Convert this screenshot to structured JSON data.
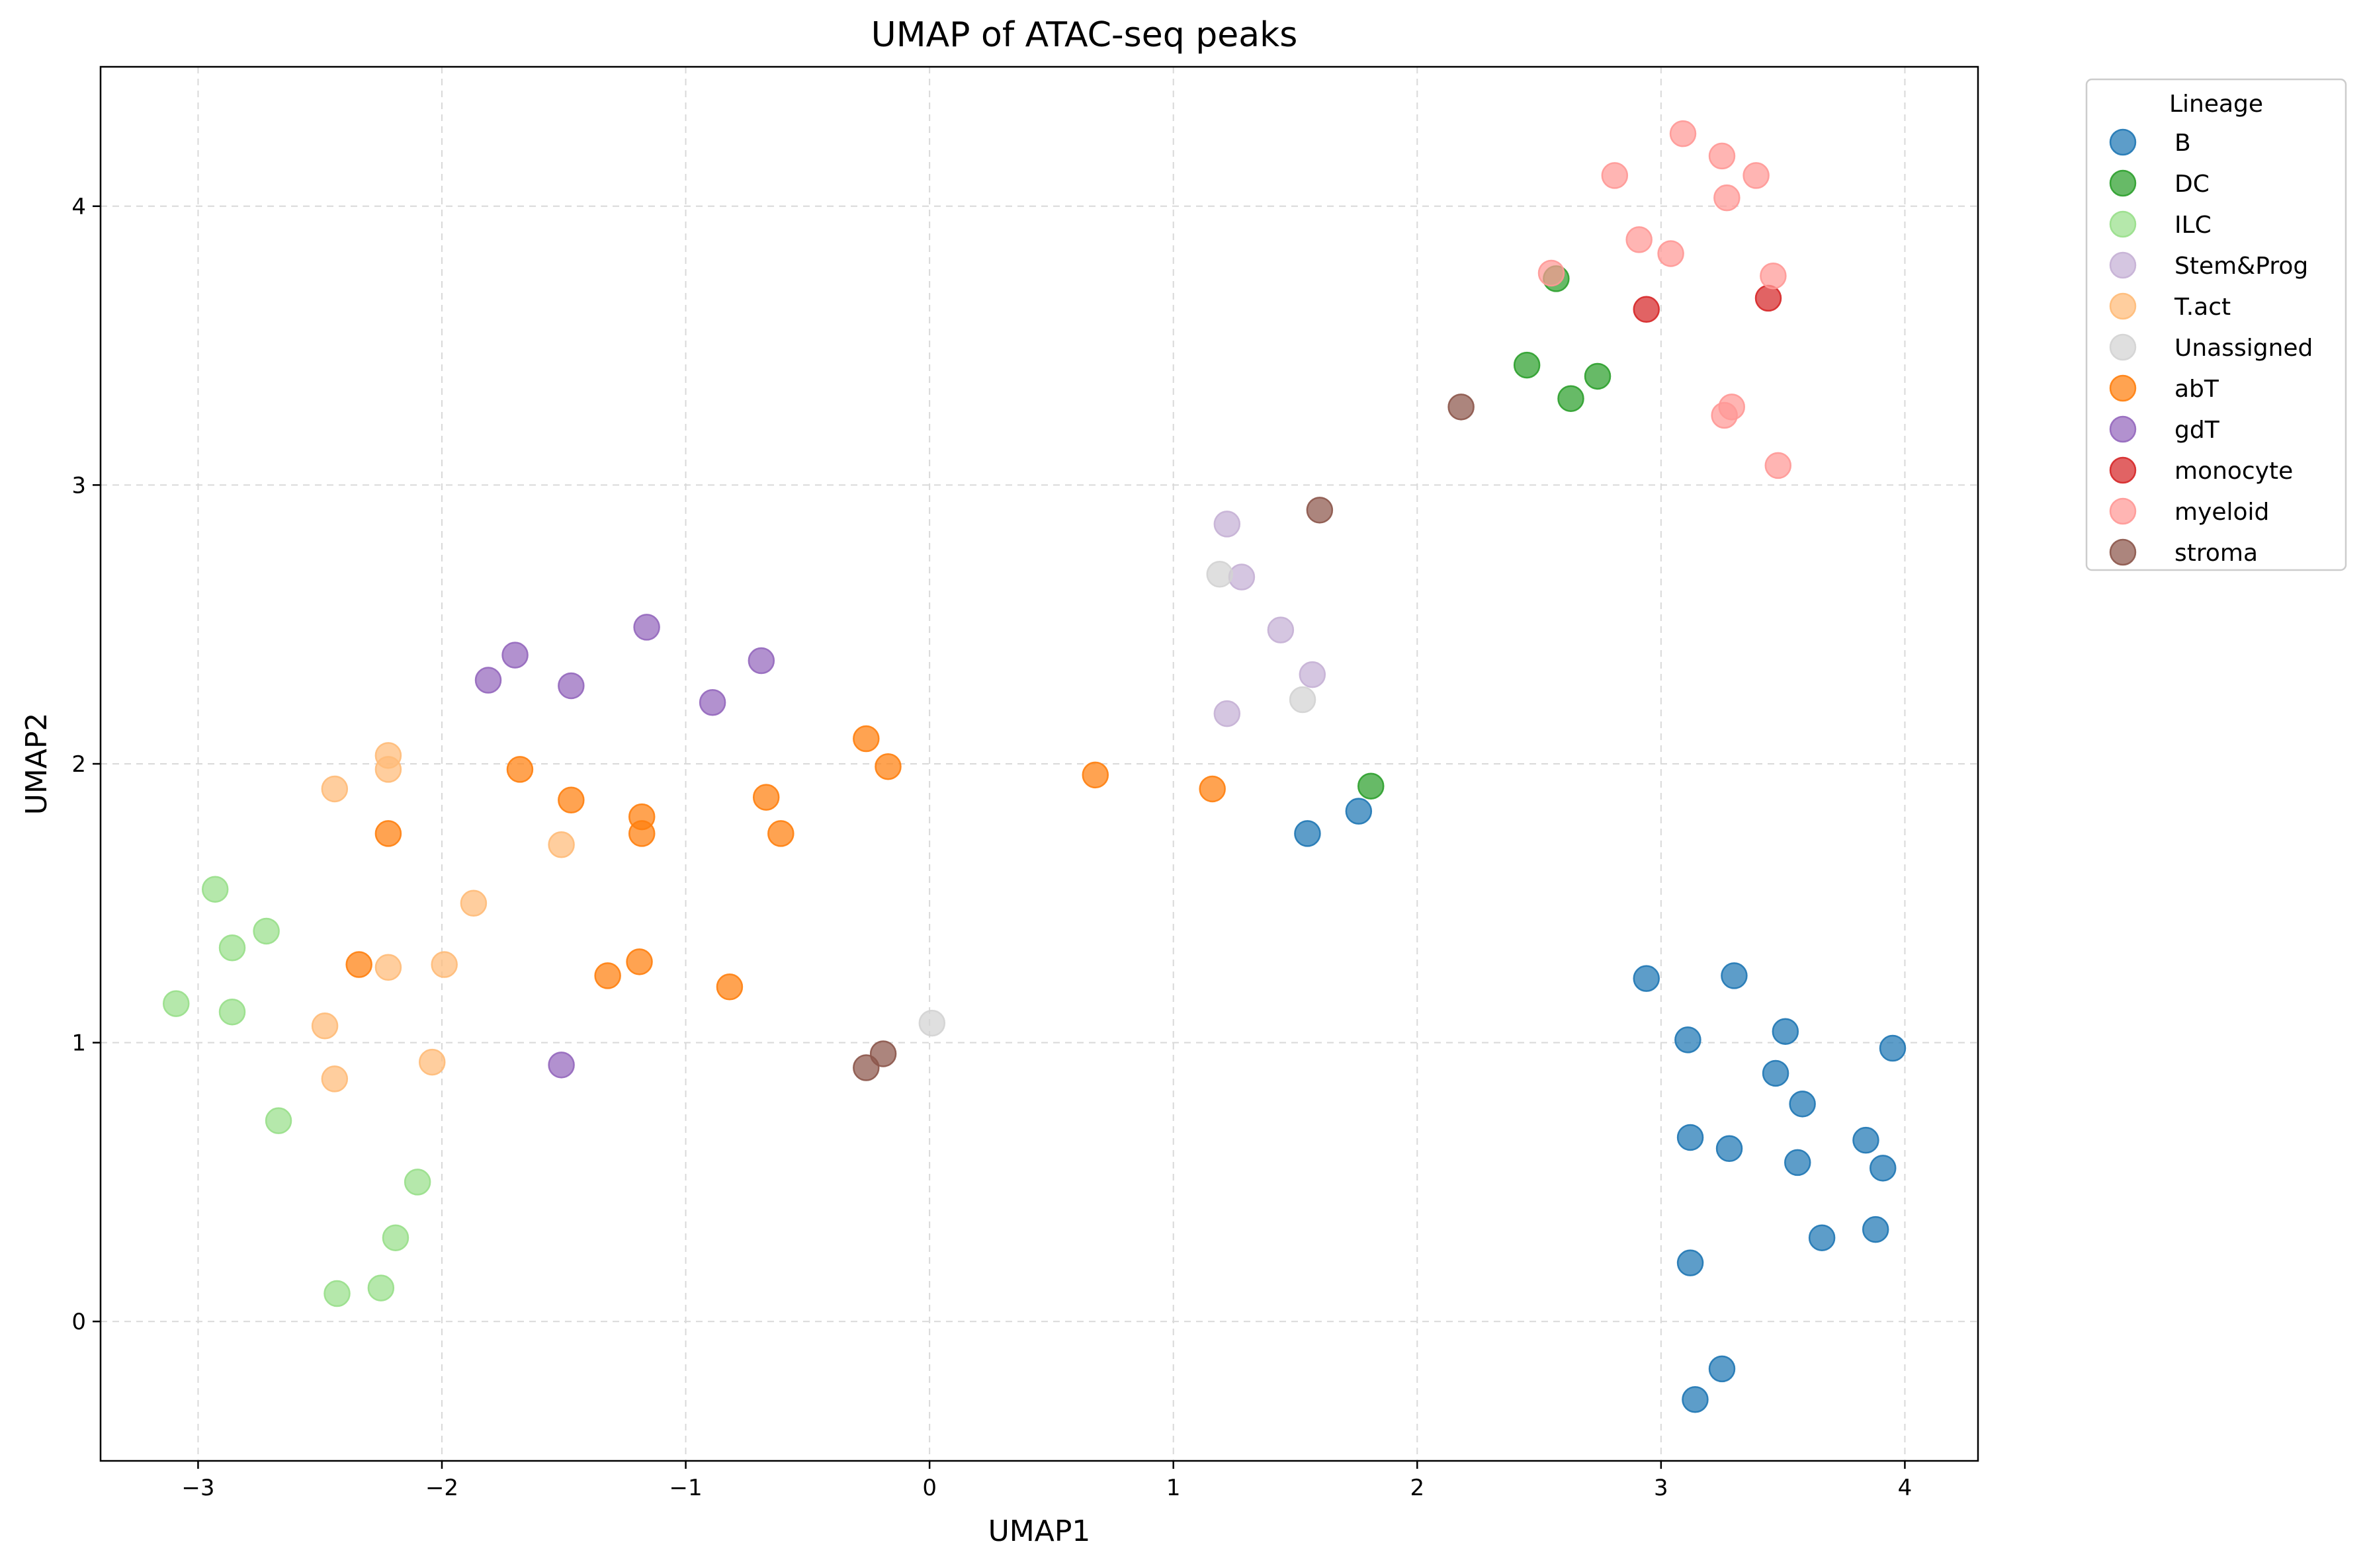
{
  "chart_data": {
    "type": "scatter",
    "title": "UMAP of ATAC-seq peaks",
    "xlabel": "UMAP1",
    "ylabel": "UMAP2",
    "xlim": [
      -3.4,
      4.3
    ],
    "ylim": [
      -0.5,
      4.5
    ],
    "xticks": [
      -3,
      -2,
      -1,
      0,
      1,
      2,
      3,
      4
    ],
    "yticks": [
      0,
      1,
      2,
      3,
      4
    ],
    "xtick_labels": [
      "−3",
      "−2",
      "−1",
      "0",
      "1",
      "2",
      "3",
      "4"
    ],
    "ytick_labels": [
      "0",
      "1",
      "2",
      "3",
      "4"
    ],
    "grid": true,
    "legend": {
      "title": "Lineage",
      "placement": "outside-top-right"
    },
    "series": [
      {
        "name": "B",
        "color": "#1f77b4",
        "points": [
          [
            1.55,
            1.75
          ],
          [
            1.76,
            1.83
          ],
          [
            2.94,
            1.23
          ],
          [
            3.3,
            1.24
          ],
          [
            3.11,
            1.01
          ],
          [
            3.51,
            1.04
          ],
          [
            3.95,
            0.98
          ],
          [
            3.47,
            0.89
          ],
          [
            3.58,
            0.78
          ],
          [
            3.12,
            0.66
          ],
          [
            3.28,
            0.62
          ],
          [
            3.56,
            0.57
          ],
          [
            3.84,
            0.65
          ],
          [
            3.91,
            0.55
          ],
          [
            3.66,
            0.3
          ],
          [
            3.88,
            0.33
          ],
          [
            3.12,
            0.21
          ],
          [
            3.25,
            -0.17
          ],
          [
            3.14,
            -0.28
          ]
        ]
      },
      {
        "name": "DC",
        "color": "#2ca02c",
        "points": [
          [
            2.57,
            3.74
          ],
          [
            2.45,
            3.43
          ],
          [
            2.63,
            3.31
          ],
          [
            2.74,
            3.39
          ],
          [
            1.81,
            1.92
          ]
        ]
      },
      {
        "name": "ILC",
        "color": "#98df8a",
        "points": [
          [
            -2.93,
            1.55
          ],
          [
            -2.72,
            1.4
          ],
          [
            -2.86,
            1.34
          ],
          [
            -3.09,
            1.14
          ],
          [
            -2.86,
            1.11
          ],
          [
            -2.67,
            0.72
          ],
          [
            -2.1,
            0.5
          ],
          [
            -2.19,
            0.3
          ],
          [
            -2.25,
            0.12
          ],
          [
            -2.43,
            0.1
          ]
        ]
      },
      {
        "name": "Stem&Prog",
        "color": "#c5b0d5",
        "points": [
          [
            1.22,
            2.86
          ],
          [
            1.28,
            2.67
          ],
          [
            1.44,
            2.48
          ],
          [
            1.57,
            2.32
          ],
          [
            1.22,
            2.18
          ]
        ]
      },
      {
        "name": "T.act",
        "color": "#ffbb78",
        "points": [
          [
            -2.22,
            2.03
          ],
          [
            -2.22,
            1.98
          ],
          [
            -2.44,
            1.91
          ],
          [
            -1.51,
            1.71
          ],
          [
            -1.87,
            1.5
          ],
          [
            -1.99,
            1.28
          ],
          [
            -2.22,
            1.27
          ],
          [
            -2.48,
            1.06
          ],
          [
            -2.44,
            0.87
          ],
          [
            -2.04,
            0.93
          ]
        ]
      },
      {
        "name": "Unassigned",
        "color": "#d3d3d3",
        "points": [
          [
            1.19,
            2.68
          ],
          [
            1.53,
            2.23
          ],
          [
            0.01,
            1.07
          ]
        ]
      },
      {
        "name": "abT",
        "color": "#ff7f0e",
        "points": [
          [
            -2.22,
            1.75
          ],
          [
            -1.68,
            1.98
          ],
          [
            -1.47,
            1.87
          ],
          [
            -1.18,
            1.81
          ],
          [
            -1.18,
            1.75
          ],
          [
            -0.67,
            1.88
          ],
          [
            -0.61,
            1.75
          ],
          [
            -0.26,
            2.09
          ],
          [
            -0.17,
            1.99
          ],
          [
            0.68,
            1.96
          ],
          [
            1.16,
            1.91
          ],
          [
            -2.34,
            1.28
          ],
          [
            -1.32,
            1.24
          ],
          [
            -1.19,
            1.29
          ],
          [
            -0.82,
            1.2
          ]
        ]
      },
      {
        "name": "gdT",
        "color": "#9467bd",
        "points": [
          [
            -1.81,
            2.3
          ],
          [
            -1.7,
            2.39
          ],
          [
            -1.47,
            2.28
          ],
          [
            -1.16,
            2.49
          ],
          [
            -0.89,
            2.22
          ],
          [
            -0.69,
            2.37
          ],
          [
            -1.51,
            0.92
          ]
        ]
      },
      {
        "name": "monocyte",
        "color": "#d62728",
        "points": [
          [
            2.94,
            3.63
          ],
          [
            3.44,
            3.67
          ]
        ]
      },
      {
        "name": "myeloid",
        "color": "#ff9896",
        "points": [
          [
            3.09,
            4.26
          ],
          [
            3.25,
            4.18
          ],
          [
            3.39,
            4.11
          ],
          [
            2.81,
            4.11
          ],
          [
            3.27,
            4.03
          ],
          [
            2.91,
            3.88
          ],
          [
            3.04,
            3.83
          ],
          [
            2.55,
            3.76
          ],
          [
            3.46,
            3.75
          ],
          [
            3.29,
            3.28
          ],
          [
            3.26,
            3.25
          ],
          [
            3.48,
            3.07
          ]
        ]
      },
      {
        "name": "stroma",
        "color": "#8c564b",
        "points": [
          [
            2.18,
            3.28
          ],
          [
            1.6,
            2.91
          ],
          [
            -0.19,
            0.96
          ],
          [
            -0.26,
            0.91
          ]
        ]
      }
    ]
  }
}
